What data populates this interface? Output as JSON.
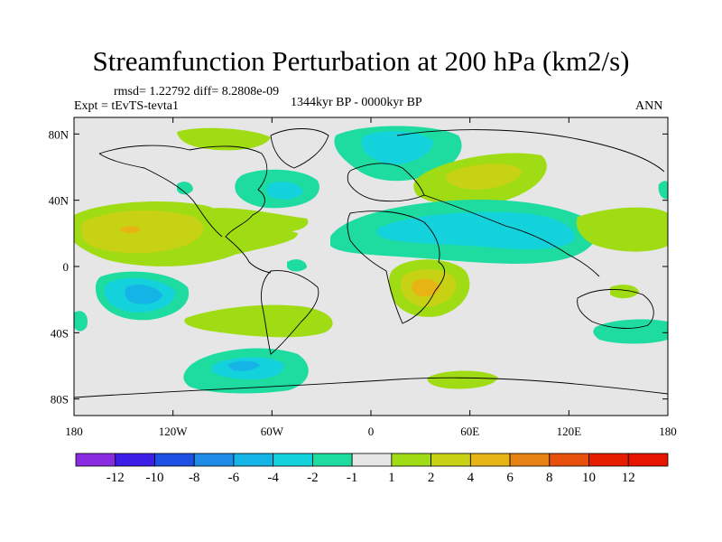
{
  "header": {
    "title": "Streamfunction Perturbation at 200 hPa (km2/s)",
    "stats": "rmsd= 1.22792 diff= 8.2808e-09",
    "experiment": "Expt = tEvTS-tevta1",
    "period": "1344kyr BP - 0000kyr BP",
    "season": "ANN"
  },
  "chart_data": {
    "type": "heatmap",
    "title": "Streamfunction Perturbation at 200 hPa (km2/s)",
    "xlabel": "",
    "ylabel": "",
    "xlim": [
      -180,
      180
    ],
    "ylim": [
      -90,
      90
    ],
    "x_ticks": [
      {
        "value": -180,
        "label": "180"
      },
      {
        "value": -120,
        "label": "120W"
      },
      {
        "value": -60,
        "label": "60W"
      },
      {
        "value": 0,
        "label": "0"
      },
      {
        "value": 60,
        "label": "60E"
      },
      {
        "value": 120,
        "label": "120E"
      },
      {
        "value": 180,
        "label": "180"
      }
    ],
    "y_ticks": [
      {
        "value": 80,
        "label": "80N"
      },
      {
        "value": 40,
        "label": "40N"
      },
      {
        "value": 0,
        "label": "0"
      },
      {
        "value": -40,
        "label": "40S"
      },
      {
        "value": -80,
        "label": "80S"
      }
    ],
    "colorbar": {
      "labels": [
        "-12",
        "-10",
        "-8",
        "-6",
        "-4",
        "-2",
        "-1",
        "1",
        "2",
        "4",
        "6",
        "8",
        "10",
        "12"
      ],
      "colors": [
        "#8a2be2",
        "#3c1ee6",
        "#1e50e6",
        "#1e8ce6",
        "#14b4e6",
        "#14d2dc",
        "#1edca0",
        "#e6e6e6",
        "#a0dc14",
        "#c8d214",
        "#e6b414",
        "#e68214",
        "#e6500a",
        "#e61e00",
        "#e61400"
      ]
    },
    "background_level_color": "#e6e6e6",
    "regions": [
      {
        "name": "north-pacific-anticyclone",
        "bins": [
          "#a0dc14",
          "#c8d214",
          "#e6b414"
        ],
        "peak_lon": -145,
        "peak_lat": 23
      },
      {
        "name": "south-pacific-cyclone",
        "bins": [
          "#1edca0",
          "#14d2dc",
          "#14b4e6"
        ],
        "peak_lon": -137,
        "peak_lat": -17
      },
      {
        "name": "north-atlantic-cyclone",
        "bins": [
          "#1edca0",
          "#14d2dc"
        ],
        "peak_lon": -55,
        "peak_lat": 45
      },
      {
        "name": "eurasia-arctic-cyclone",
        "bins": [
          "#1edca0",
          "#14d2dc"
        ],
        "peak_lon": 15,
        "peak_lat": 70
      },
      {
        "name": "central-asia-anticyclone",
        "bins": [
          "#a0dc14",
          "#c8d214"
        ],
        "peak_lon": 65,
        "peak_lat": 53
      },
      {
        "name": "tropical-afro-asia-cyclone",
        "bins": [
          "#1edca0",
          "#14d2dc"
        ],
        "peak_lon": 50,
        "peak_lat": 28
      },
      {
        "name": "southern-africa-anticyclone",
        "bins": [
          "#a0dc14",
          "#c8d214",
          "#e6b414"
        ],
        "peak_lon": 32,
        "peak_lat": -12
      },
      {
        "name": "southern-ocean-cyclone",
        "bins": [
          "#1edca0",
          "#14d2dc"
        ],
        "peak_lon": -75,
        "peak_lat": -60
      },
      {
        "name": "north-pacific-east-anticyclone",
        "bins": [
          "#a0dc14"
        ],
        "peak_lon": 160,
        "peak_lat": 45
      },
      {
        "name": "south-atlantic-anticyclone",
        "bins": [
          "#a0dc14"
        ],
        "peak_lon": -40,
        "peak_lat": -34
      }
    ]
  }
}
